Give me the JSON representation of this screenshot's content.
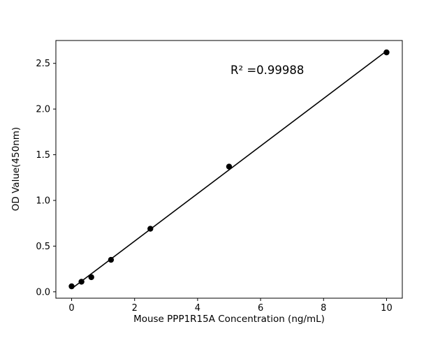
{
  "chart_data": {
    "type": "scatter",
    "title": "",
    "xlabel": "Mouse PPP1R15A Concentration (ng/mL)",
    "ylabel": "OD Value(450nm)",
    "annotation": "R² =0.99988",
    "x": [
      0,
      0.3125,
      0.625,
      1.25,
      2.5,
      5,
      10
    ],
    "y": [
      0.06,
      0.11,
      0.16,
      0.35,
      0.69,
      1.37,
      2.62
    ],
    "fit": "linear",
    "xlim": [
      -0.5,
      10.5
    ],
    "ylim": [
      -0.07,
      2.75
    ],
    "xticks": [
      0,
      2,
      4,
      6,
      8,
      10
    ],
    "xtick_labels": [
      "0",
      "2",
      "4",
      "6",
      "8",
      "10"
    ],
    "yticks": [
      0.0,
      0.5,
      1.0,
      1.5,
      2.0,
      2.5
    ],
    "ytick_labels": [
      "0.0",
      "0.5",
      "1.0",
      "1.5",
      "2.0",
      "2.5"
    ],
    "grid": "off",
    "legend": "none",
    "marker_color": "#000000",
    "line_color": "#000000",
    "background": "#ffffff"
  }
}
